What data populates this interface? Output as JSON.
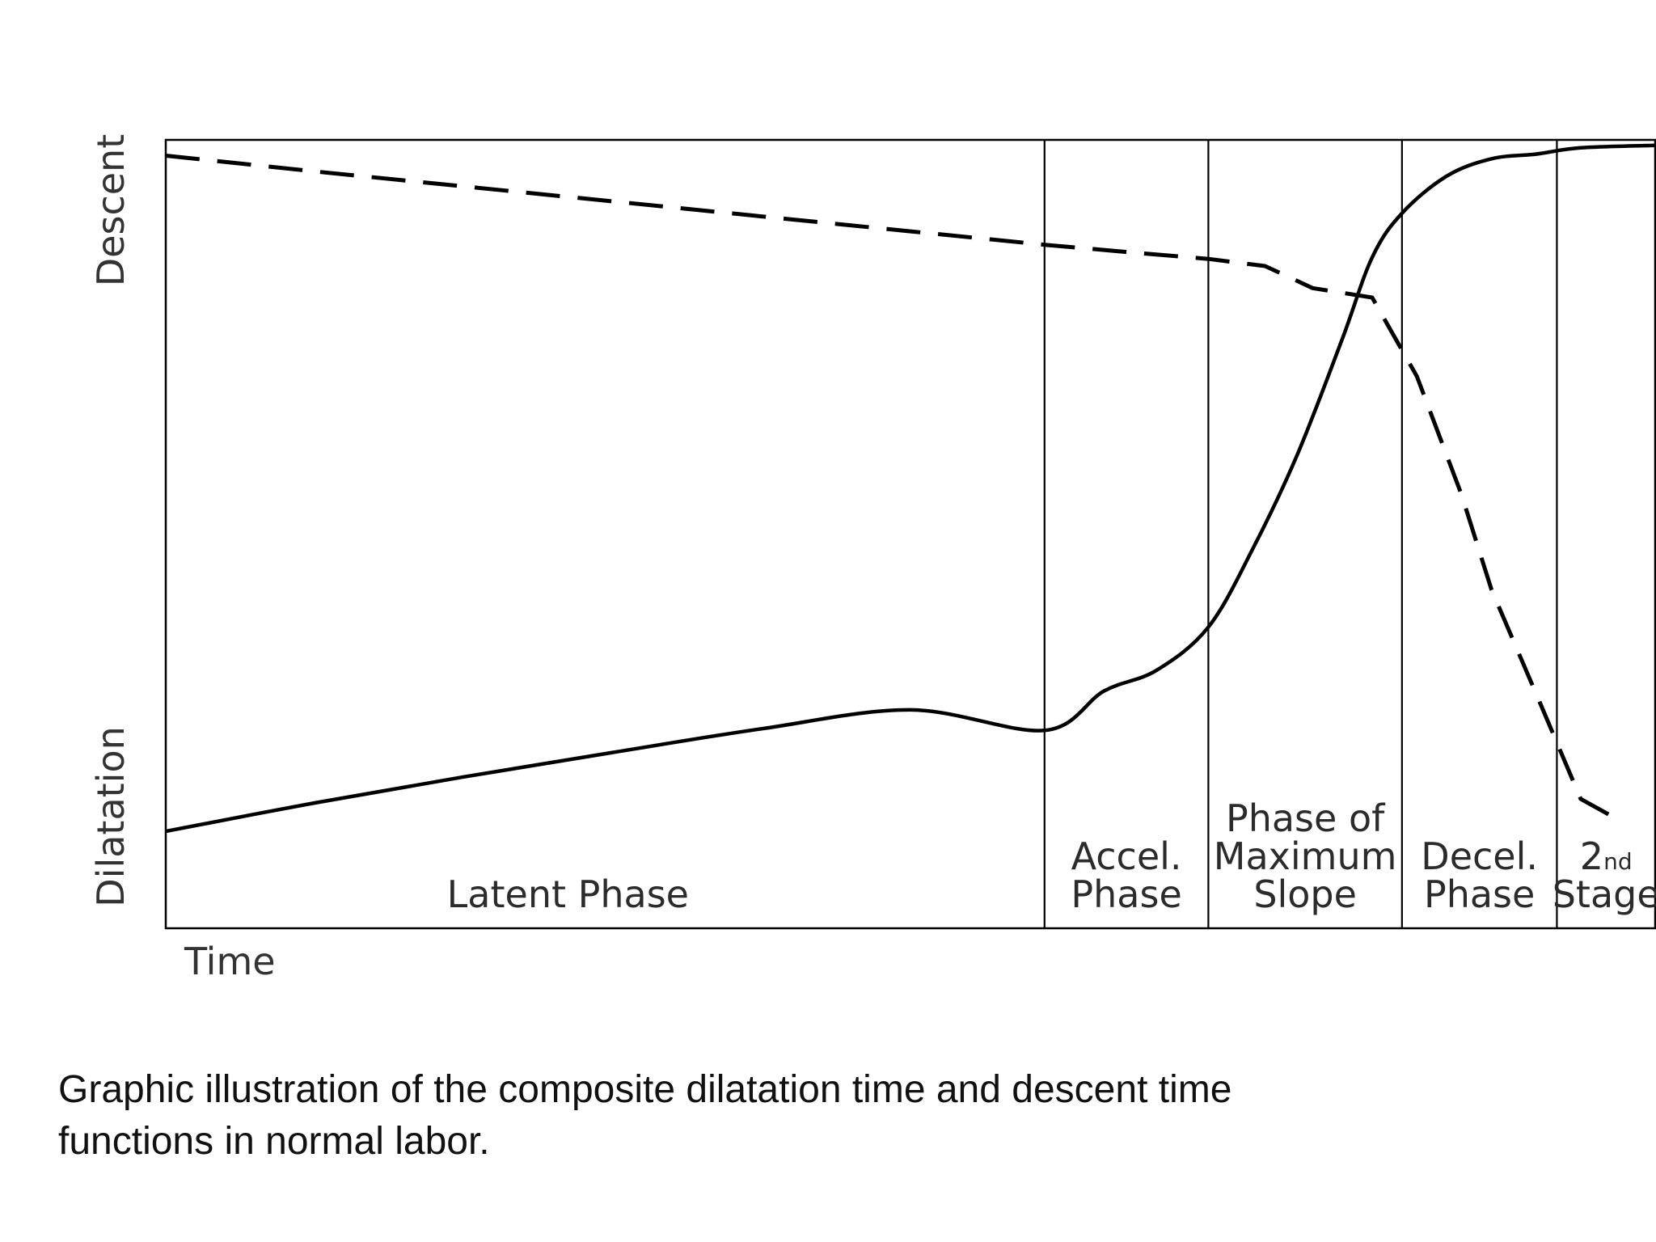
{
  "chart_data": {
    "type": "line",
    "title": "",
    "xlabel": "Time",
    "ylabel_top": "Descent",
    "ylabel_bottom": "Dilatation",
    "xlim": [
      0,
      100
    ],
    "ylim": [
      0,
      100
    ],
    "grid": false,
    "legend": "none",
    "phases": [
      {
        "name": "latent",
        "lines": [
          "Latent Phase"
        ],
        "start": 0,
        "end": 59
      },
      {
        "name": "acceleration",
        "lines": [
          "Accel.",
          "Phase"
        ],
        "start": 59,
        "end": 70
      },
      {
        "name": "maximum-slope",
        "lines": [
          "Phase of",
          "Maximum",
          "Slope"
        ],
        "start": 70,
        "end": 83
      },
      {
        "name": "deceleration",
        "lines": [
          "Decel.",
          "Phase"
        ],
        "start": 83,
        "end": 93.4
      },
      {
        "name": "second-stage",
        "lines": [
          "2nd",
          "Stage"
        ],
        "start": 93.4,
        "end": 100
      }
    ],
    "series": [
      {
        "key": "dilatation",
        "style": "solid",
        "x": [
          0,
          10,
          20,
          30,
          40,
          50,
          59,
          63,
          66.5,
          70,
          73,
          76,
          79,
          81,
          83,
          86,
          89,
          92,
          95,
          100
        ],
        "y": [
          12.3,
          15.9,
          19.2,
          22.3,
          25.3,
          27.7,
          25.1,
          30.1,
          32.7,
          38.2,
          48.2,
          60.2,
          74.8,
          85.1,
          90.7,
          95.4,
          97.6,
          98.2,
          99.0,
          99.3
        ]
      },
      {
        "key": "descent",
        "style": "dashed",
        "x": [
          0,
          10,
          20,
          30,
          40,
          50,
          59,
          65,
          70,
          73.8,
          77,
          81,
          84,
          87,
          89,
          92.4,
          95,
          97.3
        ],
        "y": [
          98.0,
          96.0,
          94.1,
          92.2,
          90.3,
          88.4,
          86.7,
          85.7,
          84.9,
          84.0,
          81.2,
          80.0,
          70.0,
          55.0,
          43.0,
          28.0,
          16.4,
          14.0
        ]
      }
    ]
  },
  "caption": {
    "line1": "Graphic illustration of the composite dilatation time and descent time",
    "line2": "functions in normal labor."
  }
}
